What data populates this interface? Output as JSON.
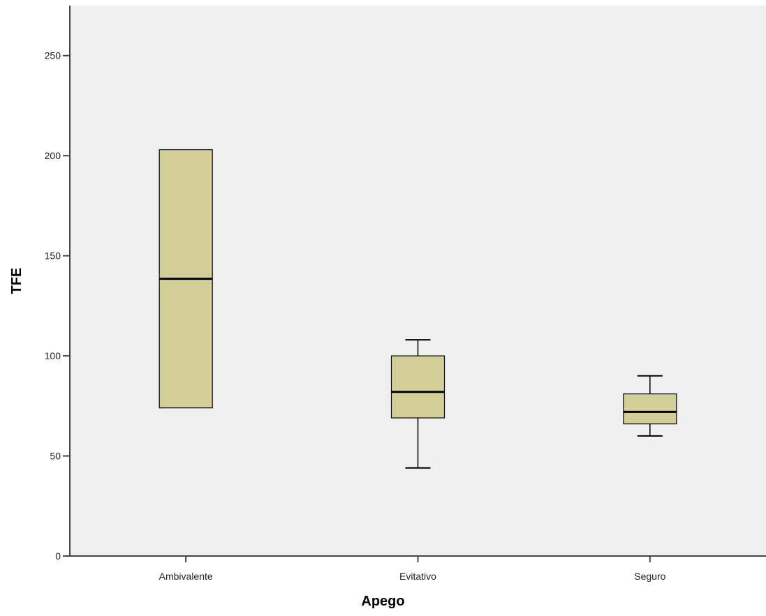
{
  "chart_data": {
    "type": "boxplot",
    "xlabel": "Apego",
    "ylabel": "TFE",
    "ylim": [
      0,
      275
    ],
    "yticks": [
      0,
      50,
      100,
      150,
      200,
      250
    ],
    "grid": false,
    "categories": [
      "Ambivalente",
      "Evitativo",
      "Seguro"
    ],
    "boxes": [
      {
        "category": "Ambivalente",
        "min": 74,
        "q1": 74,
        "median": 138.5,
        "q3": 203,
        "max": 203
      },
      {
        "category": "Evitativo",
        "min": 44,
        "q1": 69,
        "median": 82,
        "q3": 100,
        "max": 108
      },
      {
        "category": "Seguro",
        "min": 60,
        "q1": 66,
        "median": 72,
        "q3": 81,
        "max": 90
      }
    ],
    "colors": {
      "plot_background": "#f0f0f0",
      "box_fill": "#d3ce97",
      "stroke": "#000000"
    }
  }
}
